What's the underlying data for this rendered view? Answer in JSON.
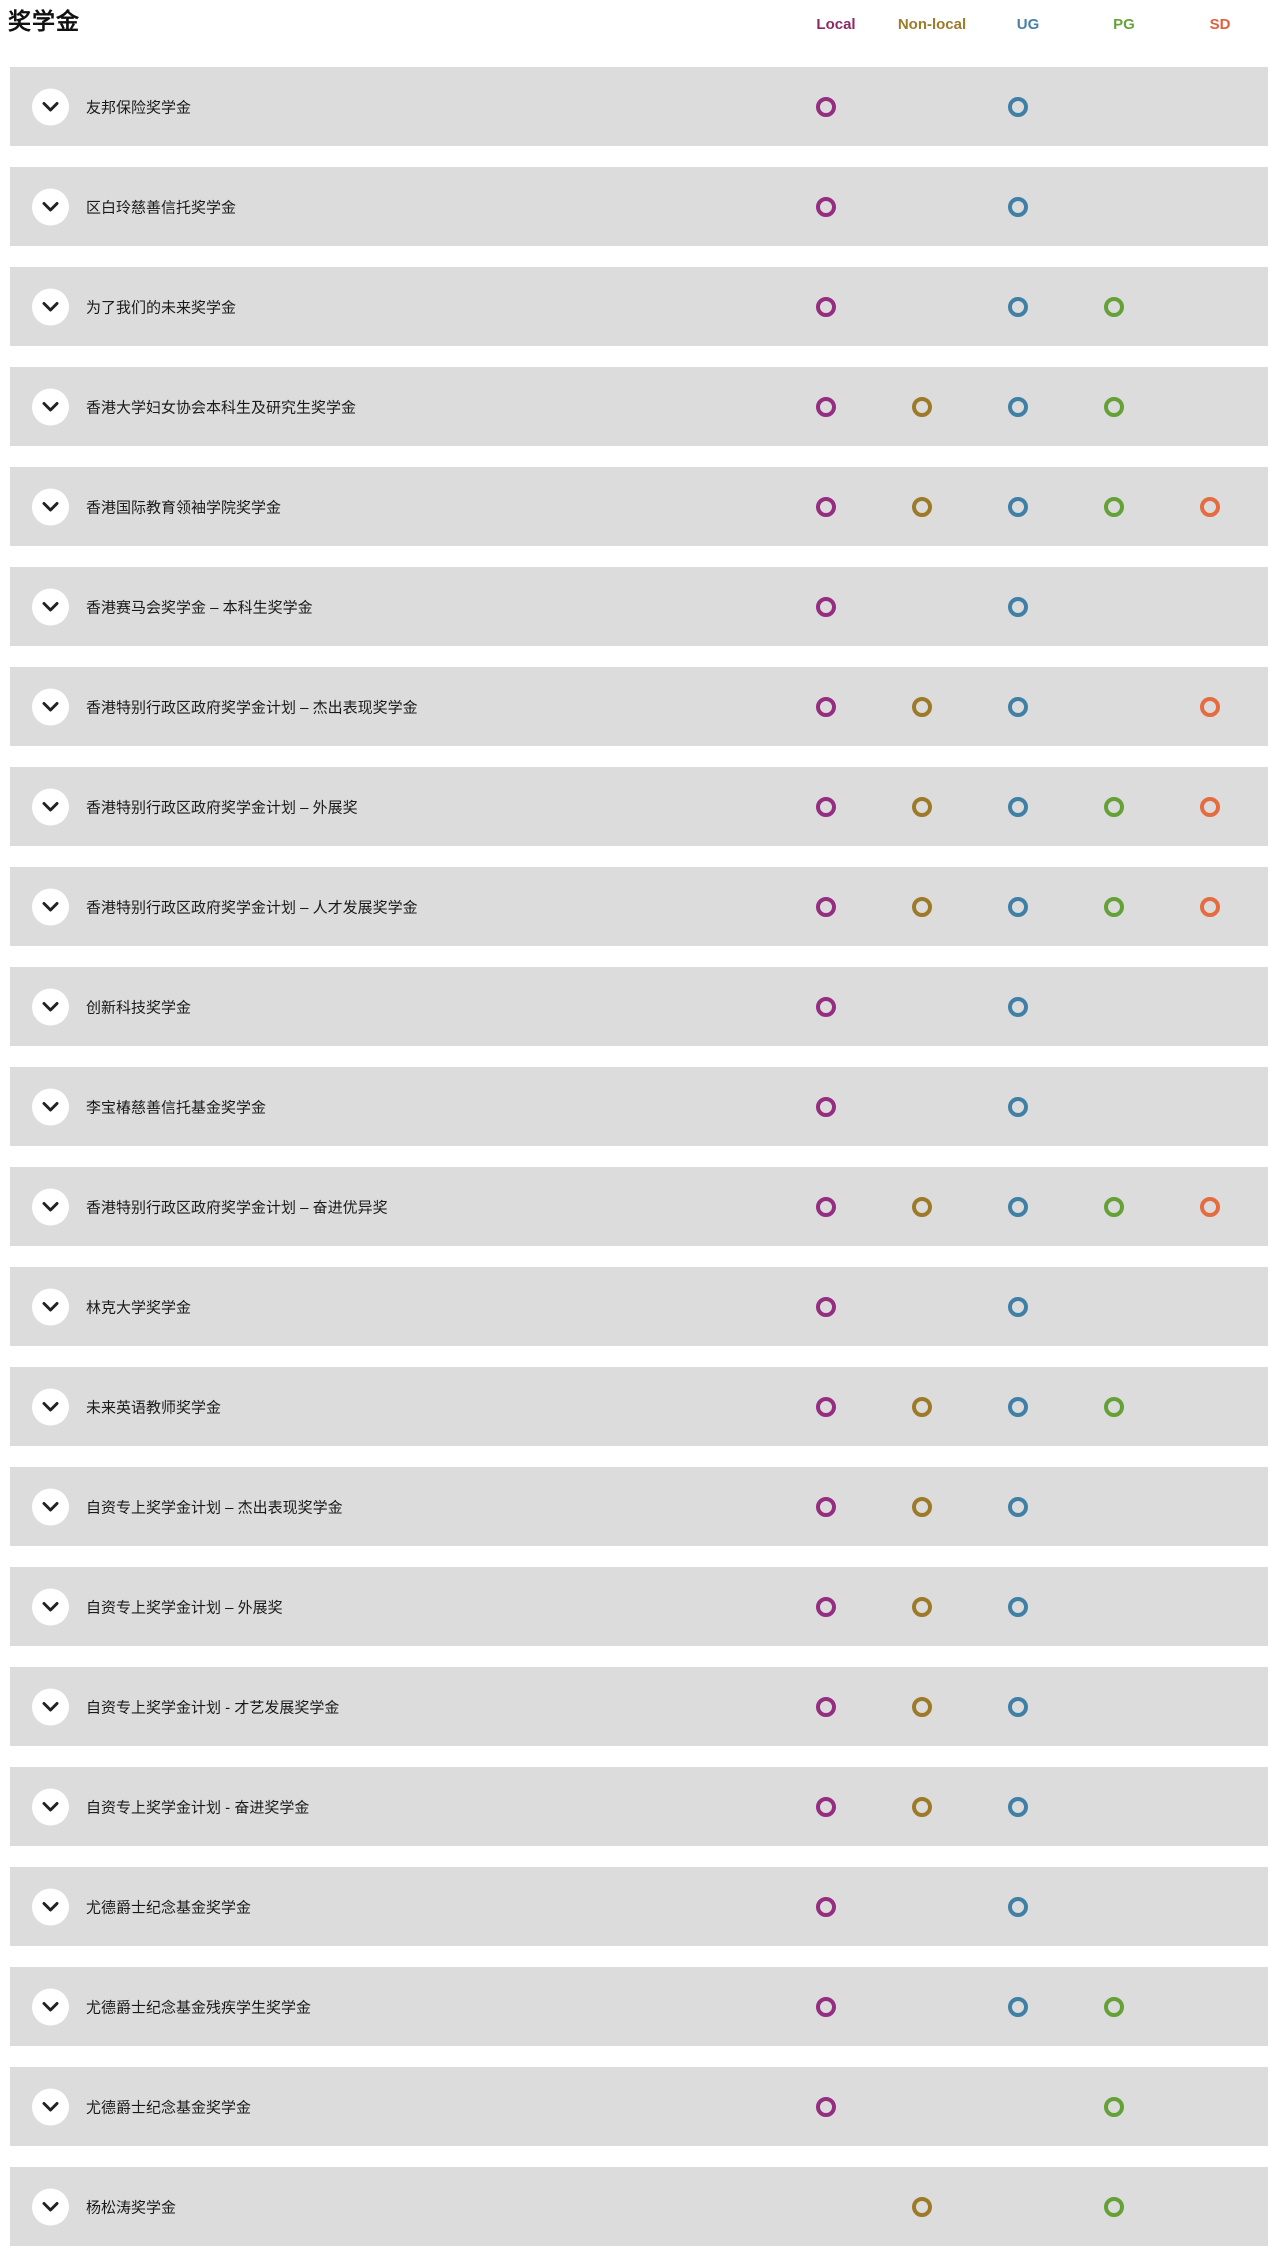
{
  "page": {
    "title": "奖学金"
  },
  "columns": [
    {
      "id": "local",
      "label": "Local",
      "text_color": "#8e2a63",
      "ring_color": "#952d80"
    },
    {
      "id": "nonlocal",
      "label": "Non-local",
      "text_color": "#9c7b2a",
      "ring_color": "#9c7a28"
    },
    {
      "id": "ug",
      "label": "UG",
      "text_color": "#4a80a8",
      "ring_color": "#4180a6"
    },
    {
      "id": "pg",
      "label": "PG",
      "text_color": "#67a33a",
      "ring_color": "#64a136"
    },
    {
      "id": "sd",
      "label": "SD",
      "text_color": "#e0603c",
      "ring_color": "#e56b40"
    }
  ],
  "icons": {
    "expand": "chevron-down-icon"
  },
  "rows": [
    {
      "name": "友邦保险奖学金",
      "marks": [
        "local",
        "ug"
      ]
    },
    {
      "name": "区白玲慈善信托奖学金",
      "marks": [
        "local",
        "ug"
      ]
    },
    {
      "name": "为了我们的未来奖学金",
      "marks": [
        "local",
        "ug",
        "pg"
      ]
    },
    {
      "name": "香港大学妇女协会本科生及研究生奖学金",
      "marks": [
        "local",
        "nonlocal",
        "ug",
        "pg"
      ]
    },
    {
      "name": "香港国际教育领袖学院奖学金",
      "marks": [
        "local",
        "nonlocal",
        "ug",
        "pg",
        "sd"
      ]
    },
    {
      "name": "香港赛马会奖学金 – 本科生奖学金",
      "marks": [
        "local",
        "ug"
      ]
    },
    {
      "name": "香港特别行政区政府奖学金计划 – 杰出表现奖学金",
      "marks": [
        "local",
        "nonlocal",
        "ug",
        "sd"
      ]
    },
    {
      "name": "香港特别行政区政府奖学金计划 – 外展奖",
      "marks": [
        "local",
        "nonlocal",
        "ug",
        "pg",
        "sd"
      ]
    },
    {
      "name": "香港特别行政区政府奖学金计划 – 人才发展奖学金",
      "marks": [
        "local",
        "nonlocal",
        "ug",
        "pg",
        "sd"
      ]
    },
    {
      "name": "创新科技奖学金",
      "marks": [
        "local",
        "ug"
      ]
    },
    {
      "name": "李宝椿慈善信托基金奖学金",
      "marks": [
        "local",
        "ug"
      ]
    },
    {
      "name": "香港特别行政区政府奖学金计划 – 奋进优异奖",
      "marks": [
        "local",
        "nonlocal",
        "ug",
        "pg",
        "sd"
      ]
    },
    {
      "name": "林克大学奖学金",
      "marks": [
        "local",
        "ug"
      ]
    },
    {
      "name": "未来英语教师奖学金",
      "marks": [
        "local",
        "nonlocal",
        "ug",
        "pg"
      ]
    },
    {
      "name": "自资专上奖学金计划 – 杰出表现奖学金",
      "marks": [
        "local",
        "nonlocal",
        "ug"
      ]
    },
    {
      "name": "自资专上奖学金计划 – 外展奖",
      "marks": [
        "local",
        "nonlocal",
        "ug"
      ]
    },
    {
      "name": "自资专上奖学金计划 - 才艺发展奖学金",
      "marks": [
        "local",
        "nonlocal",
        "ug"
      ]
    },
    {
      "name": "自资专上奖学金计划 - 奋进奖学金",
      "marks": [
        "local",
        "nonlocal",
        "ug"
      ]
    },
    {
      "name": "尤德爵士纪念基金奖学金",
      "marks": [
        "local",
        "ug"
      ]
    },
    {
      "name": "尤德爵士纪念基金残疾学生奖学金",
      "marks": [
        "local",
        "ug",
        "pg"
      ]
    },
    {
      "name": "尤德爵士纪念基金奖学金",
      "marks": [
        "local",
        "pg"
      ]
    },
    {
      "name": "杨松涛奖学金",
      "marks": [
        "nonlocal",
        "pg"
      ]
    }
  ]
}
